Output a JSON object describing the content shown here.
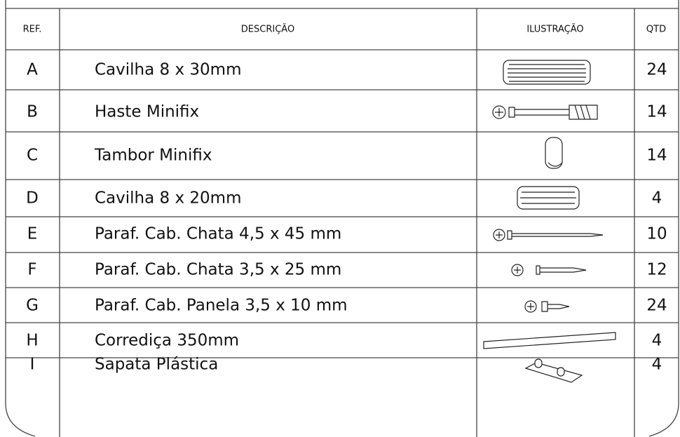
{
  "table": {
    "header": [
      "REF.",
      "DESCRIÇÃO",
      "ILUSTRAÇÃO",
      "QTD"
    ],
    "rows": [
      [
        "A",
        "Cavilha 8 x 30mm",
        24
      ],
      [
        "B",
        "Haste Minifix",
        14
      ],
      [
        "C",
        "Tambor Minifix",
        14
      ],
      [
        "D",
        "Cavilha 8 x 20mm",
        4
      ],
      [
        "E",
        "Paraf. Cab. Chata 4,5 x 45 mm",
        10
      ],
      [
        "F",
        "Paraf. Cab. Chata 3,5 x 25 mm",
        12
      ],
      [
        "G",
        "Paraf. Cab. Panela 3,5 x 10 mm",
        24
      ],
      [
        "H",
        "Corrediça 350mm",
        4
      ],
      [
        "I",
        "Sapata Plástica",
        4
      ]
    ]
  }
}
